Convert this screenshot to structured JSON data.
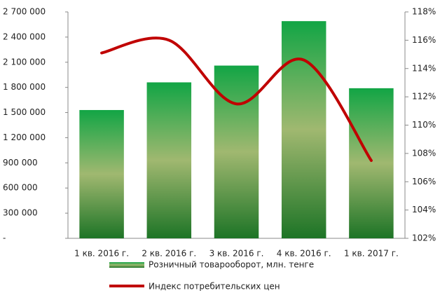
{
  "chart_data": {
    "type": "bar_line",
    "categories": [
      "1 кв. 2016 г.",
      "2 кв. 2016 г.",
      "3 кв. 2016 г.",
      "4 кв. 2016 г.",
      "1 кв. 2017 г."
    ],
    "series": [
      {
        "name": "Розничный товарооборот, млн. тенге",
        "type": "bar",
        "color": "#1aa64a",
        "values": [
          1530000,
          1860000,
          2060000,
          2590000,
          1790000
        ]
      },
      {
        "name": "Индекс потребительских цен",
        "type": "line",
        "axis": "y2",
        "color": "#c00000",
        "values": [
          115.1,
          116.0,
          111.5,
          114.6,
          107.5
        ]
      }
    ],
    "ylim": [
      0,
      2700000
    ],
    "yticks": [
      {
        "value": 0,
        "label": "-"
      },
      {
        "value": 300000,
        "label": "300 000"
      },
      {
        "value": 600000,
        "label": "600 000"
      },
      {
        "value": 900000,
        "label": "900 000"
      },
      {
        "value": 1200000,
        "label": "1 200 000"
      },
      {
        "value": 1500000,
        "label": "1 500 000"
      },
      {
        "value": 1800000,
        "label": "1 800 000"
      },
      {
        "value": 2100000,
        "label": "2 100 000"
      },
      {
        "value": 2400000,
        "label": "2 400 000"
      },
      {
        "value": 2700000,
        "label": "2 700 000"
      }
    ],
    "y2lim": [
      102,
      118
    ],
    "y2ticks": [
      {
        "value": 102,
        "label": "102%"
      },
      {
        "value": 104,
        "label": "104%"
      },
      {
        "value": 106,
        "label": "106%"
      },
      {
        "value": 108,
        "label": "108%"
      },
      {
        "value": 110,
        "label": "110%"
      },
      {
        "value": 112,
        "label": "112%"
      },
      {
        "value": 114,
        "label": "114%"
      },
      {
        "value": 116,
        "label": "116%"
      },
      {
        "value": 118,
        "label": "118%"
      }
    ],
    "grid": false,
    "legend": "bottom"
  }
}
